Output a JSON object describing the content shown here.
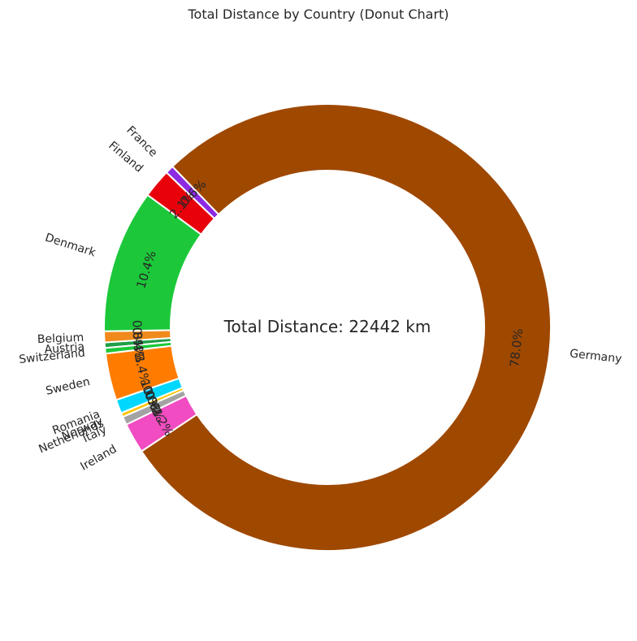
{
  "chart_data": {
    "type": "pie",
    "variant": "donut",
    "title": "Total Distance by Country (Donut Chart)",
    "center_label": "Total Distance: 22442 km",
    "start_angle_deg": 185.3,
    "direction": "clockwise",
    "slices": [
      {
        "label": "Austria",
        "percent": 0.4,
        "pct_label": "0.4%",
        "color": "#1f9e48"
      },
      {
        "label": "Belgium",
        "percent": 0.8,
        "pct_label": "0.8%",
        "color": "#f08a1c"
      },
      {
        "label": "Denmark",
        "percent": 10.4,
        "pct_label": "10.4%",
        "color": "#1cc83a"
      },
      {
        "label": "Finland",
        "percent": 2.1,
        "pct_label": "2.1%",
        "color": "#e8000b"
      },
      {
        "label": "France",
        "percent": 0.6,
        "pct_label": "0.6%",
        "color": "#8b2be2"
      },
      {
        "label": "Germany",
        "percent": 78.0,
        "pct_label": "78.0%",
        "color": "#9f4800"
      },
      {
        "label": "Ireland",
        "percent": 2.2,
        "pct_label": "2.2%",
        "color": "#f14cc1"
      },
      {
        "label": "Italy",
        "percent": 0.6,
        "pct_label": "0.6%",
        "color": "#a3a3a3"
      },
      {
        "label": "Netherlands",
        "percent": 0.3,
        "pct_label": "0.3%",
        "color": "#ffc400"
      },
      {
        "label": "Norway",
        "percent": 0.0,
        "pct_label": "0.0%",
        "color": "#ffc400"
      },
      {
        "label": "Romania",
        "percent": 1.0,
        "pct_label": "1.0%",
        "color": "#00d7ff"
      },
      {
        "label": "Sweden",
        "percent": 3.4,
        "pct_label": "3.4%",
        "color": "#ff7c00"
      },
      {
        "label": "Switzerland",
        "percent": 0.4,
        "pct_label": "0.4%",
        "color": "#1cc83a"
      }
    ]
  }
}
